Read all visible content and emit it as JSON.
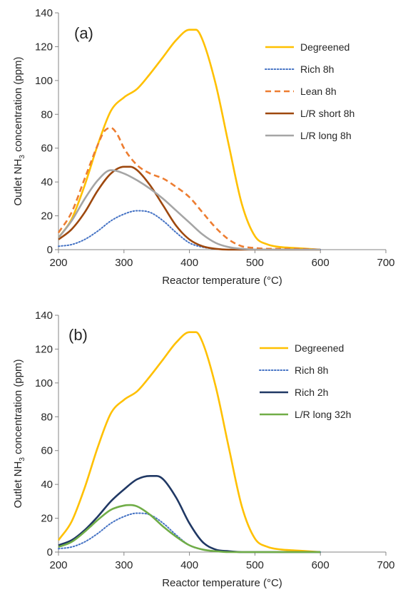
{
  "chart_data": [
    {
      "type": "line",
      "panel_label": "(a)",
      "xlabel": "Reactor temperature (°C)",
      "ylabel_prefix": "Outlet NH",
      "ylabel_sub": "3",
      "ylabel_suffix": " concentration (ppm)",
      "xlim": [
        200,
        700
      ],
      "ylim": [
        0,
        140
      ],
      "xticks": [
        200,
        300,
        400,
        500,
        600,
        700
      ],
      "yticks": [
        0,
        20,
        40,
        60,
        80,
        100,
        120,
        140
      ],
      "grid": false,
      "legend_position": "top-right",
      "series": [
        {
          "name": "Degreened",
          "color": "#FFC000",
          "dash": "solid",
          "x": [
            200,
            220,
            240,
            260,
            280,
            300,
            320,
            340,
            360,
            380,
            400,
            410,
            420,
            440,
            460,
            480,
            500,
            520,
            540,
            560,
            580,
            600
          ],
          "y": [
            7,
            18,
            38,
            62,
            82,
            90,
            95,
            104,
            114,
            124,
            130,
            130,
            124,
            98,
            62,
            27,
            8,
            3,
            1.5,
            1,
            0.5,
            0
          ]
        },
        {
          "name": "Rich 8h",
          "color": "#4472C4",
          "dash": "dotted",
          "x": [
            200,
            220,
            240,
            260,
            280,
            300,
            320,
            340,
            360,
            380,
            400,
            420,
            440,
            460,
            500,
            600
          ],
          "y": [
            2,
            3,
            6,
            11,
            17,
            21,
            23,
            22,
            17,
            10,
            4,
            1.5,
            0.5,
            0,
            0,
            0
          ]
        },
        {
          "name": "Lean 8h",
          "color": "#ED7D31",
          "dash": "dashed",
          "x": [
            200,
            220,
            240,
            260,
            270,
            280,
            290,
            300,
            320,
            340,
            360,
            380,
            400,
            420,
            440,
            460,
            480,
            500,
            520,
            540,
            560,
            580,
            600
          ],
          "y": [
            10,
            22,
            42,
            62,
            70,
            72,
            68,
            60,
            50,
            45,
            42,
            37,
            31,
            22,
            13,
            6,
            2,
            1,
            0.5,
            0.5,
            0.5,
            0.3,
            0
          ]
        },
        {
          "name": "L/R short 8h",
          "color": "#9E480E",
          "dash": "solid",
          "x": [
            200,
            220,
            240,
            260,
            280,
            300,
            310,
            320,
            340,
            360,
            380,
            400,
            420,
            440,
            460,
            480,
            500,
            600
          ],
          "y": [
            6,
            12,
            22,
            35,
            45,
            49,
            49,
            47,
            38,
            26,
            14,
            6,
            2,
            0.5,
            0,
            0,
            0,
            0
          ]
        },
        {
          "name": "L/R long 8h",
          "color": "#A5A5A5",
          "dash": "solid",
          "x": [
            200,
            220,
            240,
            260,
            280,
            300,
            320,
            340,
            360,
            380,
            400,
            420,
            440,
            460,
            480,
            500,
            600
          ],
          "y": [
            7,
            17,
            30,
            41,
            47,
            45,
            41,
            36,
            30,
            23,
            16,
            9,
            4,
            1.5,
            0.5,
            0,
            0
          ]
        }
      ]
    },
    {
      "type": "line",
      "panel_label": "(b)",
      "xlabel": "Reactor temperature (°C)",
      "ylabel_prefix": "Outlet NH",
      "ylabel_sub": "3",
      "ylabel_suffix": " concentration (ppm)",
      "xlim": [
        200,
        700
      ],
      "ylim": [
        0,
        140
      ],
      "xticks": [
        200,
        300,
        400,
        500,
        600,
        700
      ],
      "yticks": [
        0,
        20,
        40,
        60,
        80,
        100,
        120,
        140
      ],
      "grid": false,
      "legend_position": "top-right",
      "series": [
        {
          "name": "Degreened",
          "color": "#FFC000",
          "dash": "solid",
          "x": [
            200,
            220,
            240,
            260,
            280,
            300,
            320,
            340,
            360,
            380,
            400,
            410,
            420,
            440,
            460,
            480,
            500,
            520,
            540,
            560,
            580,
            600
          ],
          "y": [
            7,
            18,
            38,
            62,
            82,
            90,
            95,
            104,
            114,
            124,
            130,
            130,
            124,
            98,
            62,
            27,
            8,
            3,
            1.5,
            1,
            0.5,
            0
          ]
        },
        {
          "name": "Rich 8h",
          "color": "#4472C4",
          "dash": "dotted",
          "x": [
            200,
            220,
            240,
            260,
            280,
            300,
            320,
            340,
            360,
            380,
            400,
            420,
            440,
            460,
            500,
            600
          ],
          "y": [
            2,
            3,
            6,
            11,
            17,
            21,
            23,
            22,
            17,
            10,
            4,
            1.5,
            0.5,
            0,
            0,
            0
          ]
        },
        {
          "name": "Rich 2h",
          "color": "#203864",
          "dash": "solid",
          "x": [
            200,
            220,
            240,
            260,
            280,
            300,
            320,
            340,
            350,
            360,
            380,
            400,
            420,
            440,
            460,
            480,
            500,
            600
          ],
          "y": [
            4,
            7,
            13,
            21,
            30,
            37,
            43,
            45,
            45,
            43,
            32,
            17,
            6,
            1.5,
            0.5,
            0,
            0,
            0
          ]
        },
        {
          "name": "L/R long 32h",
          "color": "#70AD47",
          "dash": "solid",
          "x": [
            200,
            220,
            240,
            260,
            280,
            300,
            310,
            320,
            340,
            360,
            380,
            400,
            420,
            440,
            460,
            500,
            600
          ],
          "y": [
            3,
            6,
            12,
            19,
            25,
            27.5,
            27.8,
            27,
            22,
            15,
            9,
            4,
            1.5,
            0.5,
            0,
            0,
            0
          ]
        }
      ]
    }
  ]
}
